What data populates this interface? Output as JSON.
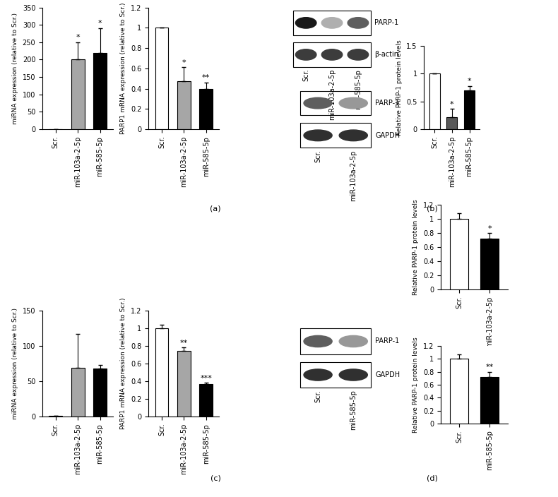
{
  "panel_labels": [
    "(a)",
    "(b)",
    "(c)",
    "(d)"
  ],
  "chart_data": [
    {
      "type": "bar",
      "ylabel": "miRNA expression (relative to Scr.)",
      "categories": [
        "Scr.",
        "miR-103a-2-5p",
        "miR-585-5p"
      ],
      "values": [
        1,
        200,
        220
      ],
      "errors": [
        0,
        50,
        70
      ],
      "significance": [
        null,
        "*",
        "*"
      ],
      "colors": [
        "#ffffff",
        "#a6a6a6",
        "#000000"
      ],
      "ylim": [
        0,
        350
      ],
      "yticks": [
        0,
        50,
        100,
        150,
        200,
        250,
        300,
        350
      ]
    },
    {
      "type": "bar",
      "ylabel": "PARP1 mRNA expression (relative to Scr.)",
      "categories": [
        "Scr.",
        "miR-103a-2-5p",
        "miR-585-5p"
      ],
      "values": [
        1,
        0.47,
        0.4
      ],
      "errors": [
        0,
        0.14,
        0.06
      ],
      "significance": [
        null,
        "*",
        "**"
      ],
      "colors": [
        "#ffffff",
        "#a6a6a6",
        "#000000"
      ],
      "ylim": [
        0,
        1.2
      ],
      "yticks": [
        0,
        0.2,
        0.4,
        0.6,
        0.8,
        1,
        1.2
      ]
    },
    {
      "type": "blot",
      "lanes": [
        "Scr.",
        "miR-103a-2-5p",
        "miR-585-5p"
      ],
      "rows": [
        {
          "name": "PARP-1",
          "bands": [
            1.0,
            0.35,
            0.7
          ]
        },
        {
          "name": "β-actin",
          "bands": [
            0.85,
            0.85,
            0.85
          ]
        }
      ]
    },
    {
      "type": "bar",
      "ylabel": "Relative PARP-1 protein levels",
      "categories": [
        "Scr.",
        "miR-103a-2-5p",
        "miR-585-5p"
      ],
      "values": [
        1,
        0.22,
        0.7
      ],
      "errors": [
        0,
        0.15,
        0.08
      ],
      "significance": [
        null,
        "*",
        "*"
      ],
      "colors": [
        "#ffffff",
        "#595959",
        "#000000"
      ],
      "ylim": [
        0,
        1.5
      ],
      "yticks": [
        0,
        0.5,
        1,
        1.5
      ]
    },
    {
      "type": "bar",
      "ylabel": "miRNA expression (relative to Scr.)",
      "categories": [
        "Scr.",
        "miR-103a-2-5p",
        "miR-585-5p"
      ],
      "values": [
        1,
        69,
        68
      ],
      "errors": [
        0,
        48,
        5
      ],
      "significance": [
        null,
        null,
        null
      ],
      "colors": [
        "#ffffff",
        "#a6a6a6",
        "#000000"
      ],
      "ylim": [
        0,
        150
      ],
      "yticks": [
        0,
        50,
        100,
        150
      ]
    },
    {
      "type": "bar",
      "ylabel": "PARP1 mRNA expression (relative to Scr.)",
      "categories": [
        "Scr.",
        "miR-103a-2-5p",
        "miR-585-5p"
      ],
      "values": [
        1,
        0.74,
        0.37
      ],
      "errors": [
        0.04,
        0.04,
        0.01
      ],
      "significance": [
        null,
        "**",
        "***"
      ],
      "colors": [
        "#ffffff",
        "#a6a6a6",
        "#000000"
      ],
      "ylim": [
        0,
        1.2
      ],
      "yticks": [
        0,
        0.2,
        0.4,
        0.6,
        0.8,
        1,
        1.2
      ]
    },
    {
      "type": "blot",
      "lanes": [
        "Scr.",
        "miR-103a-2-5p"
      ],
      "rows": [
        {
          "name": "PARP-1",
          "bands": [
            0.7,
            0.45
          ]
        },
        {
          "name": "GAPDH",
          "bands": [
            0.9,
            0.9
          ]
        }
      ]
    },
    {
      "type": "bar",
      "ylabel": "Relative PARP-1 protein levels",
      "categories": [
        "Scr.",
        "miR-103a-2-5p"
      ],
      "values": [
        1,
        0.72
      ],
      "errors": [
        0.08,
        0.08
      ],
      "significance": [
        null,
        "*"
      ],
      "colors": [
        "#ffffff",
        "#000000"
      ],
      "ylim": [
        0,
        1.2
      ],
      "yticks": [
        0,
        0.2,
        0.4,
        0.6,
        0.8,
        1,
        1.2
      ]
    },
    {
      "type": "blot",
      "lanes": [
        "Scr.",
        "miR-585-5p"
      ],
      "rows": [
        {
          "name": "PARP-1",
          "bands": [
            0.7,
            0.45
          ]
        },
        {
          "name": "GAPDH",
          "bands": [
            0.9,
            0.9
          ]
        }
      ]
    },
    {
      "type": "bar",
      "ylabel": "Relative PARP-1 protein levels",
      "categories": [
        "Scr.",
        "miR-585-5p"
      ],
      "values": [
        1,
        0.72
      ],
      "errors": [
        0.07,
        0.08
      ],
      "significance": [
        null,
        "**"
      ],
      "colors": [
        "#ffffff",
        "#000000"
      ],
      "ylim": [
        0,
        1.2
      ],
      "yticks": [
        0,
        0.2,
        0.4,
        0.6,
        0.8,
        1,
        1.2
      ]
    }
  ]
}
